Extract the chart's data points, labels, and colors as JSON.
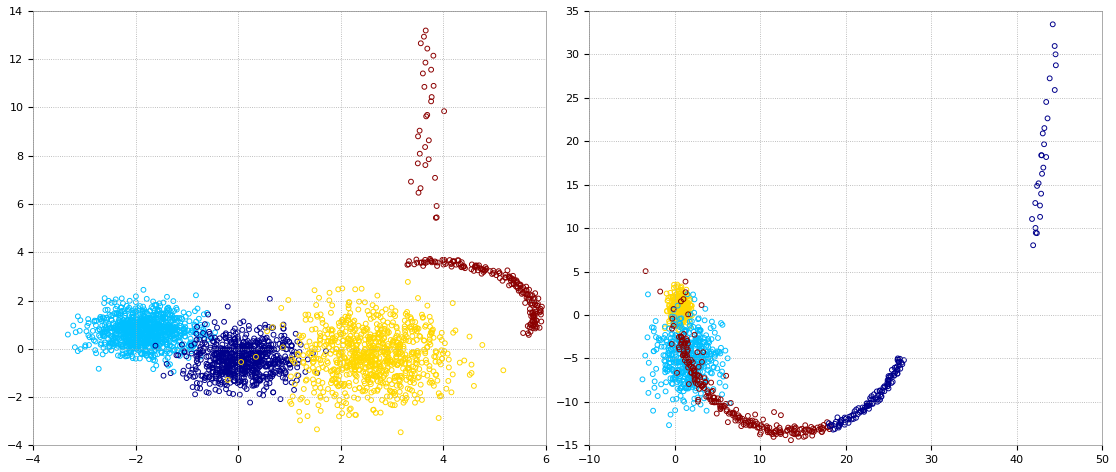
{
  "left_plot": {
    "xlim": [
      -4,
      6
    ],
    "ylim": [
      -4,
      14
    ],
    "xticks": [
      -4,
      -2,
      0,
      2,
      4,
      6
    ],
    "yticks": [
      -4,
      -2,
      0,
      2,
      4,
      6,
      8,
      10,
      12,
      14
    ]
  },
  "right_plot": {
    "xlim": [
      -10,
      50
    ],
    "ylim": [
      -15,
      35
    ],
    "xticks": [
      -10,
      0,
      10,
      20,
      30,
      40,
      50
    ],
    "yticks": [
      -15,
      -10,
      -5,
      0,
      5,
      10,
      15,
      20,
      25,
      30,
      35
    ]
  },
  "colors": {
    "cyan": "#00BFFF",
    "dark_blue": "#00008B",
    "yellow": "#FFD700",
    "dark_red": "#8B0000"
  },
  "bg_color": "#FFFFFF",
  "marker_size": 12,
  "linewidth": 0.7
}
